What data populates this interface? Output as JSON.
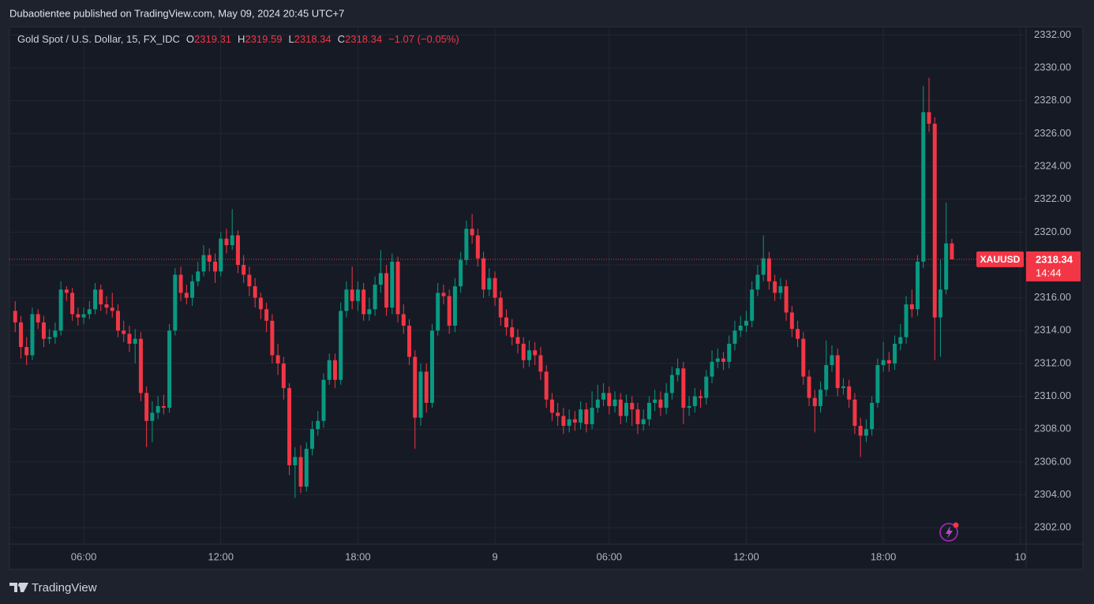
{
  "publisher": "Dubaotientee published on TradingView.com, May 09, 2024 20:45 UTC+7",
  "brand": "TradingView",
  "chart_data": {
    "type": "candlestick",
    "title": "Gold Spot / U.S. Dollar, 15, FX_IDC",
    "ohlc_labels": [
      "O",
      "H",
      "L",
      "C"
    ],
    "change": "−1.07 (−0.05%)",
    "symbol": "XAUUSD",
    "countdown": "14:44",
    "up_color": "#089981",
    "down_color": "#f23645",
    "grid": true,
    "ylim": [
      2301,
      2332.5
    ],
    "xlim": [
      -1,
      177
    ],
    "yticks": [
      {
        "value": 2302,
        "label": "2302.00"
      },
      {
        "value": 2304,
        "label": "2304.00"
      },
      {
        "value": 2306,
        "label": "2306.00"
      },
      {
        "value": 2308,
        "label": "2308.00"
      },
      {
        "value": 2310,
        "label": "2310.00"
      },
      {
        "value": 2312,
        "label": "2312.00"
      },
      {
        "value": 2314,
        "label": "2314.00"
      },
      {
        "value": 2316,
        "label": "2316.00"
      },
      {
        "value": 2318,
        "label": "2318.00"
      },
      {
        "value": 2320,
        "label": "2320.00"
      },
      {
        "value": 2322,
        "label": "2322.00"
      },
      {
        "value": 2324,
        "label": "2324.00"
      },
      {
        "value": 2326,
        "label": "2326.00"
      },
      {
        "value": 2328,
        "label": "2328.00"
      },
      {
        "value": 2330,
        "label": "2330.00"
      },
      {
        "value": 2332,
        "label": "2332.00"
      }
    ],
    "xticks": [
      {
        "value": 12,
        "label": "06:00"
      },
      {
        "value": 36,
        "label": "12:00"
      },
      {
        "value": 60,
        "label": "18:00"
      },
      {
        "value": 84,
        "label": "9"
      },
      {
        "value": 104,
        "label": "06:00"
      },
      {
        "value": 128,
        "label": "12:00"
      },
      {
        "value": 152,
        "label": "18:00"
      },
      {
        "value": 176,
        "label": "10"
      }
    ],
    "open": [
      2315.2,
      2314.5,
      2313,
      2312.5,
      2315,
      2314.5,
      2313.5,
      2313.6,
      2314,
      2316.5,
      2316.3,
      2315,
      2314.8,
      2315,
      2315.3,
      2316.5,
      2315.6,
      2315.4,
      2315.2,
      2314,
      2313.8,
      2313.2,
      2313.5,
      2310.2,
      2308.5,
      2309,
      2309.4,
      2309.3,
      2314,
      2317.4,
      2316.3,
      2316,
      2317,
      2317.6,
      2318.6,
      2318.2,
      2317.6,
      2319.6,
      2319.2,
      2319.8,
      2318,
      2317.4,
      2316.7,
      2316,
      2315.3,
      2314.6,
      2312.5,
      2312,
      2310.5,
      2305.8,
      2306.3,
      2304.5,
      2306.8,
      2308,
      2308.5,
      2311,
      2312.2,
      2311,
      2315.2,
      2316.5,
      2315.8,
      2316.5,
      2315,
      2315.3,
      2316.8,
      2317.5,
      2315.4,
      2318.2,
      2315,
      2314.3,
      2312.4,
      2308.7,
      2311.5,
      2309.6,
      2314,
      2316.3,
      2316.1,
      2314.3,
      2316.7,
      2318.3,
      2320.2,
      2319.8,
      2318.4,
      2316.5,
      2317.2,
      2316,
      2314.8,
      2314.2,
      2313.6,
      2313.2,
      2312.2,
      2312.8,
      2312.5,
      2311.5,
      2309.8,
      2309,
      2308.8,
      2308.2,
      2308.6,
      2308.4,
      2309.2,
      2308.3,
      2309.3,
      2309.8,
      2310.2,
      2309.4,
      2309.8,
      2308.8,
      2309.6,
      2309.2,
      2308.3,
      2308.6,
      2309.6,
      2309.8,
      2309.3,
      2310.2,
      2311.3,
      2311.7,
      2309.3,
      2309.4,
      2310,
      2309.9,
      2311.2,
      2312.1,
      2312.3,
      2312.1,
      2313.2,
      2314,
      2314.3,
      2314.6,
      2316.5,
      2317.4,
      2318.4,
      2317,
      2316.3,
      2316.7,
      2315.1,
      2314.1,
      2313.5,
      2311.2,
      2309.9,
      2309.4,
      2310.4,
      2311.9,
      2312.5,
      2310.5,
      2310.6,
      2309.8,
      2308.2,
      2307.6,
      2308,
      2309.6,
      2311.9,
      2312.2,
      2312,
      2313.2,
      2313.6,
      2315.6,
      2315.3,
      2318.2,
      2327.3,
      2326.6,
      2314.8,
      2316.5,
      2319.31
    ],
    "high": [
      2315.8,
      2314.9,
      2313.6,
      2315.4,
      2315.3,
      2314.9,
      2314.1,
      2314.5,
      2317,
      2316.7,
      2316.6,
      2315.4,
      2315.4,
      2315.8,
      2316.9,
      2316.8,
      2316.1,
      2316.3,
      2315.6,
      2314.6,
      2314.3,
      2314.1,
      2313.9,
      2310.6,
      2309.7,
      2310,
      2310.1,
      2314.4,
      2317.8,
      2317.9,
      2316.8,
      2317.4,
      2318.2,
      2319.2,
      2319,
      2318.7,
      2320,
      2320.2,
      2321.4,
      2320.1,
      2318.6,
      2317.9,
      2317.2,
      2316.3,
      2315.7,
      2315,
      2313.2,
      2312.4,
      2310.8,
      2306.9,
      2307,
      2307.2,
      2308.5,
      2309.1,
      2311.4,
      2312.6,
      2312.6,
      2315.7,
      2317,
      2317.9,
      2317,
      2316.9,
      2316,
      2317.3,
      2318.9,
      2318,
      2318.7,
      2318.5,
      2315.6,
      2314.7,
      2312.8,
      2312,
      2312,
      2314.4,
      2316.9,
      2316.8,
      2316.5,
      2317.2,
      2318.8,
      2320.7,
      2321.1,
      2320.2,
      2318.8,
      2317.8,
      2317.6,
      2316.4,
      2315.3,
      2314.7,
      2314.1,
      2313.6,
      2313.4,
      2313.3,
      2313,
      2311.9,
      2310.2,
      2309.6,
      2309.3,
      2309.2,
      2309.1,
      2309.7,
      2309.6,
      2310.3,
      2310.7,
      2310.8,
      2310.6,
      2310.3,
      2310.2,
      2310.1,
      2310,
      2309.6,
      2309.2,
      2310,
      2310.4,
      2310.3,
      2310.8,
      2311.8,
      2312.3,
      2312.1,
      2310,
      2310.5,
      2310.4,
      2311.6,
      2312.8,
      2312.9,
      2312.7,
      2313.7,
      2314.6,
      2314.9,
      2315.2,
      2317,
      2318,
      2319.8,
      2318.8,
      2317.4,
      2317.2,
      2317.1,
      2315.5,
      2314.6,
      2313.9,
      2311.6,
      2310.4,
      2310.9,
      2313.4,
      2313.1,
      2312.9,
      2311.1,
      2311,
      2310.2,
      2308.7,
      2308.6,
      2310,
      2312.3,
      2313.3,
      2312.7,
      2313.7,
      2314.4,
      2316.1,
      2316.5,
      2318.6,
      2328.9,
      2329.4,
      2327,
      2318.3,
      2321.8,
      2319.59
    ],
    "low": [
      2313.9,
      2312.3,
      2311.9,
      2312.2,
      2314.1,
      2313,
      2313.2,
      2313.2,
      2313.7,
      2315.8,
      2314.6,
      2314.3,
      2314.4,
      2314.7,
      2315,
      2315.2,
      2315,
      2314.8,
      2313.6,
      2313.3,
      2312.7,
      2312,
      2309.7,
      2306.9,
      2307.2,
      2308.6,
      2308.9,
      2309,
      2313.7,
      2315.8,
      2315.6,
      2315.5,
      2316.7,
      2317.3,
      2317.6,
      2316.9,
      2317.3,
      2318.7,
      2318.9,
      2317.5,
      2316.9,
      2316.1,
      2315.4,
      2314.7,
      2313.9,
      2312,
      2311.3,
      2309.8,
      2305.2,
      2303.8,
      2304.1,
      2304.2,
      2306.4,
      2307.6,
      2308.1,
      2310.7,
      2310.5,
      2310.7,
      2314.8,
      2315.3,
      2315.2,
      2314.6,
      2314.6,
      2314.9,
      2316.3,
      2314.9,
      2315,
      2314.5,
      2313.8,
      2311.9,
      2306.8,
      2308.2,
      2309,
      2309.3,
      2313.7,
      2315.6,
      2313.8,
      2313.9,
      2316.3,
      2318,
      2319.3,
      2317.9,
      2316,
      2316.1,
      2315.5,
      2314.3,
      2313.7,
      2313.1,
      2312.6,
      2311.7,
      2311.8,
      2311.9,
      2311,
      2309.3,
      2308.5,
      2308.2,
      2307.7,
      2307.8,
      2307.9,
      2308,
      2307.8,
      2308,
      2309,
      2309.4,
      2308.9,
      2309,
      2308.3,
      2308.4,
      2308.2,
      2307.7,
      2307.9,
      2308.2,
      2309.1,
      2308.8,
      2308.9,
      2309.8,
      2310.9,
      2308.3,
      2308.8,
      2309,
      2309.3,
      2309.5,
      2310.8,
      2311.7,
      2311.6,
      2311.7,
      2312.8,
      2313.6,
      2313.9,
      2314.2,
      2316.1,
      2317,
      2316.5,
      2315.8,
      2315.9,
      2314.6,
      2313.6,
      2313,
      2310.7,
      2309.4,
      2307.8,
      2309,
      2310,
      2311.5,
      2310,
      2310.1,
      2309.3,
      2307.7,
      2306.3,
      2307.2,
      2307.6,
      2309.3,
      2311.5,
      2311.5,
      2311.6,
      2312.8,
      2313.2,
      2314.8,
      2314.9,
      2317.8,
      2326.1,
      2312.2,
      2312.4,
      2316.2,
      2318.34
    ],
    "close": [
      2314.5,
      2313,
      2312.5,
      2315,
      2314.5,
      2313.5,
      2313.6,
      2314,
      2316.5,
      2316.3,
      2315,
      2314.8,
      2315,
      2315.3,
      2316.5,
      2315.6,
      2315.4,
      2315.2,
      2314,
      2313.8,
      2313.2,
      2313.5,
      2310.2,
      2308.5,
      2309,
      2309.4,
      2309.3,
      2314,
      2317.4,
      2316.3,
      2316,
      2317,
      2317.6,
      2318.6,
      2318.2,
      2317.6,
      2319.6,
      2319.2,
      2319.8,
      2318,
      2317.4,
      2316.7,
      2316,
      2315.3,
      2314.6,
      2312.5,
      2312,
      2310.5,
      2305.8,
      2306.3,
      2304.5,
      2306.8,
      2308,
      2308.5,
      2311,
      2312.2,
      2311,
      2315.2,
      2316.5,
      2315.8,
      2316.5,
      2315,
      2315.3,
      2316.8,
      2317.5,
      2315.4,
      2318.2,
      2315,
      2314.3,
      2312.4,
      2308.7,
      2311.5,
      2309.6,
      2314,
      2316.3,
      2316.1,
      2314.3,
      2316.7,
      2318.3,
      2320.2,
      2319.8,
      2318.4,
      2316.5,
      2317.2,
      2316,
      2314.8,
      2314.2,
      2313.6,
      2313.2,
      2312.2,
      2312.8,
      2312.5,
      2311.5,
      2309.8,
      2309,
      2308.8,
      2308.2,
      2308.6,
      2308.4,
      2309.2,
      2308.3,
      2309.3,
      2309.8,
      2310.2,
      2309.4,
      2309.8,
      2308.8,
      2309.6,
      2309.2,
      2308.3,
      2308.6,
      2309.6,
      2309.8,
      2309.3,
      2310.2,
      2311.3,
      2311.7,
      2309.3,
      2309.4,
      2310,
      2309.9,
      2311.2,
      2312.1,
      2312.3,
      2312.1,
      2313.2,
      2314,
      2314.3,
      2314.6,
      2316.5,
      2317.4,
      2318.4,
      2317,
      2316.3,
      2316.7,
      2315.1,
      2314.1,
      2313.5,
      2311.2,
      2309.9,
      2309.4,
      2310.4,
      2311.9,
      2312.5,
      2310.5,
      2310.6,
      2309.8,
      2308.2,
      2307.6,
      2308,
      2309.6,
      2311.9,
      2312.2,
      2312,
      2313.2,
      2313.6,
      2315.6,
      2315.3,
      2318.2,
      2327.3,
      2326.6,
      2314.8,
      2316.5,
      2319.31,
      2318.34
    ]
  }
}
